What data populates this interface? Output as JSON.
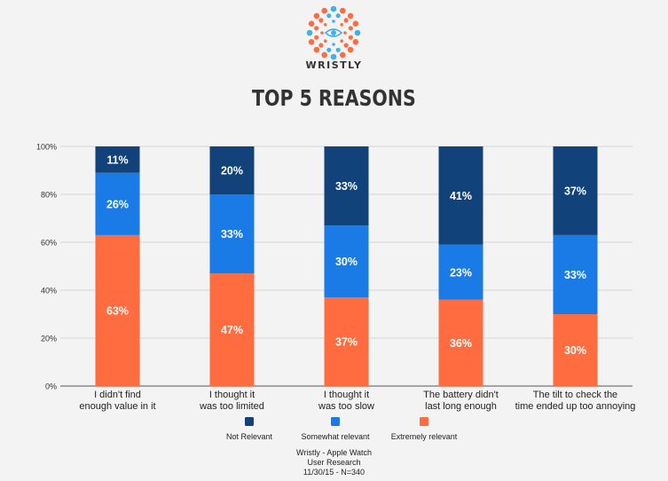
{
  "brand": {
    "name": "WRISTLY"
  },
  "colors": {
    "not_relevant": "#12427a",
    "somewhat_relevant": "#1a7ae6",
    "extremely_relevant": "#fe6c40",
    "logo_orange": "#fe6c40",
    "logo_blue": "#42b0ea",
    "text_dark": "#333333"
  },
  "chart_data": {
    "type": "bar",
    "stacked": true,
    "title": "TOP 5 REASONS",
    "categories": [
      [
        "I didn't find",
        "enough value in it"
      ],
      [
        "I thought it",
        "was too limited"
      ],
      [
        "I thought it",
        "was too slow"
      ],
      [
        "The battery didn't",
        "last long enough"
      ],
      [
        "The tilt to check the",
        "time ended up too annoying"
      ]
    ],
    "series": [
      {
        "name": "Extremely relevant",
        "color": "#fe6c40",
        "values": [
          63,
          47,
          37,
          36,
          30
        ]
      },
      {
        "name": "Somewhat relevant",
        "color": "#1a7ae6",
        "values": [
          26,
          33,
          30,
          23,
          33
        ]
      },
      {
        "name": "Not Relevant",
        "color": "#12427a",
        "values": [
          11,
          20,
          33,
          41,
          37
        ]
      }
    ],
    "legend_order": [
      "Not Relevant",
      "Somewhat relevant",
      "Extremely relevant"
    ],
    "ylim": [
      0,
      100
    ],
    "yticks": [
      "0%",
      "20%",
      "40%",
      "60%",
      "80%",
      "100%"
    ],
    "grid": true,
    "legend_position": "bottom"
  },
  "footer": {
    "lines": [
      "Wristly - Apple Watch",
      "User Research",
      "11/30/15 - N=340"
    ]
  }
}
